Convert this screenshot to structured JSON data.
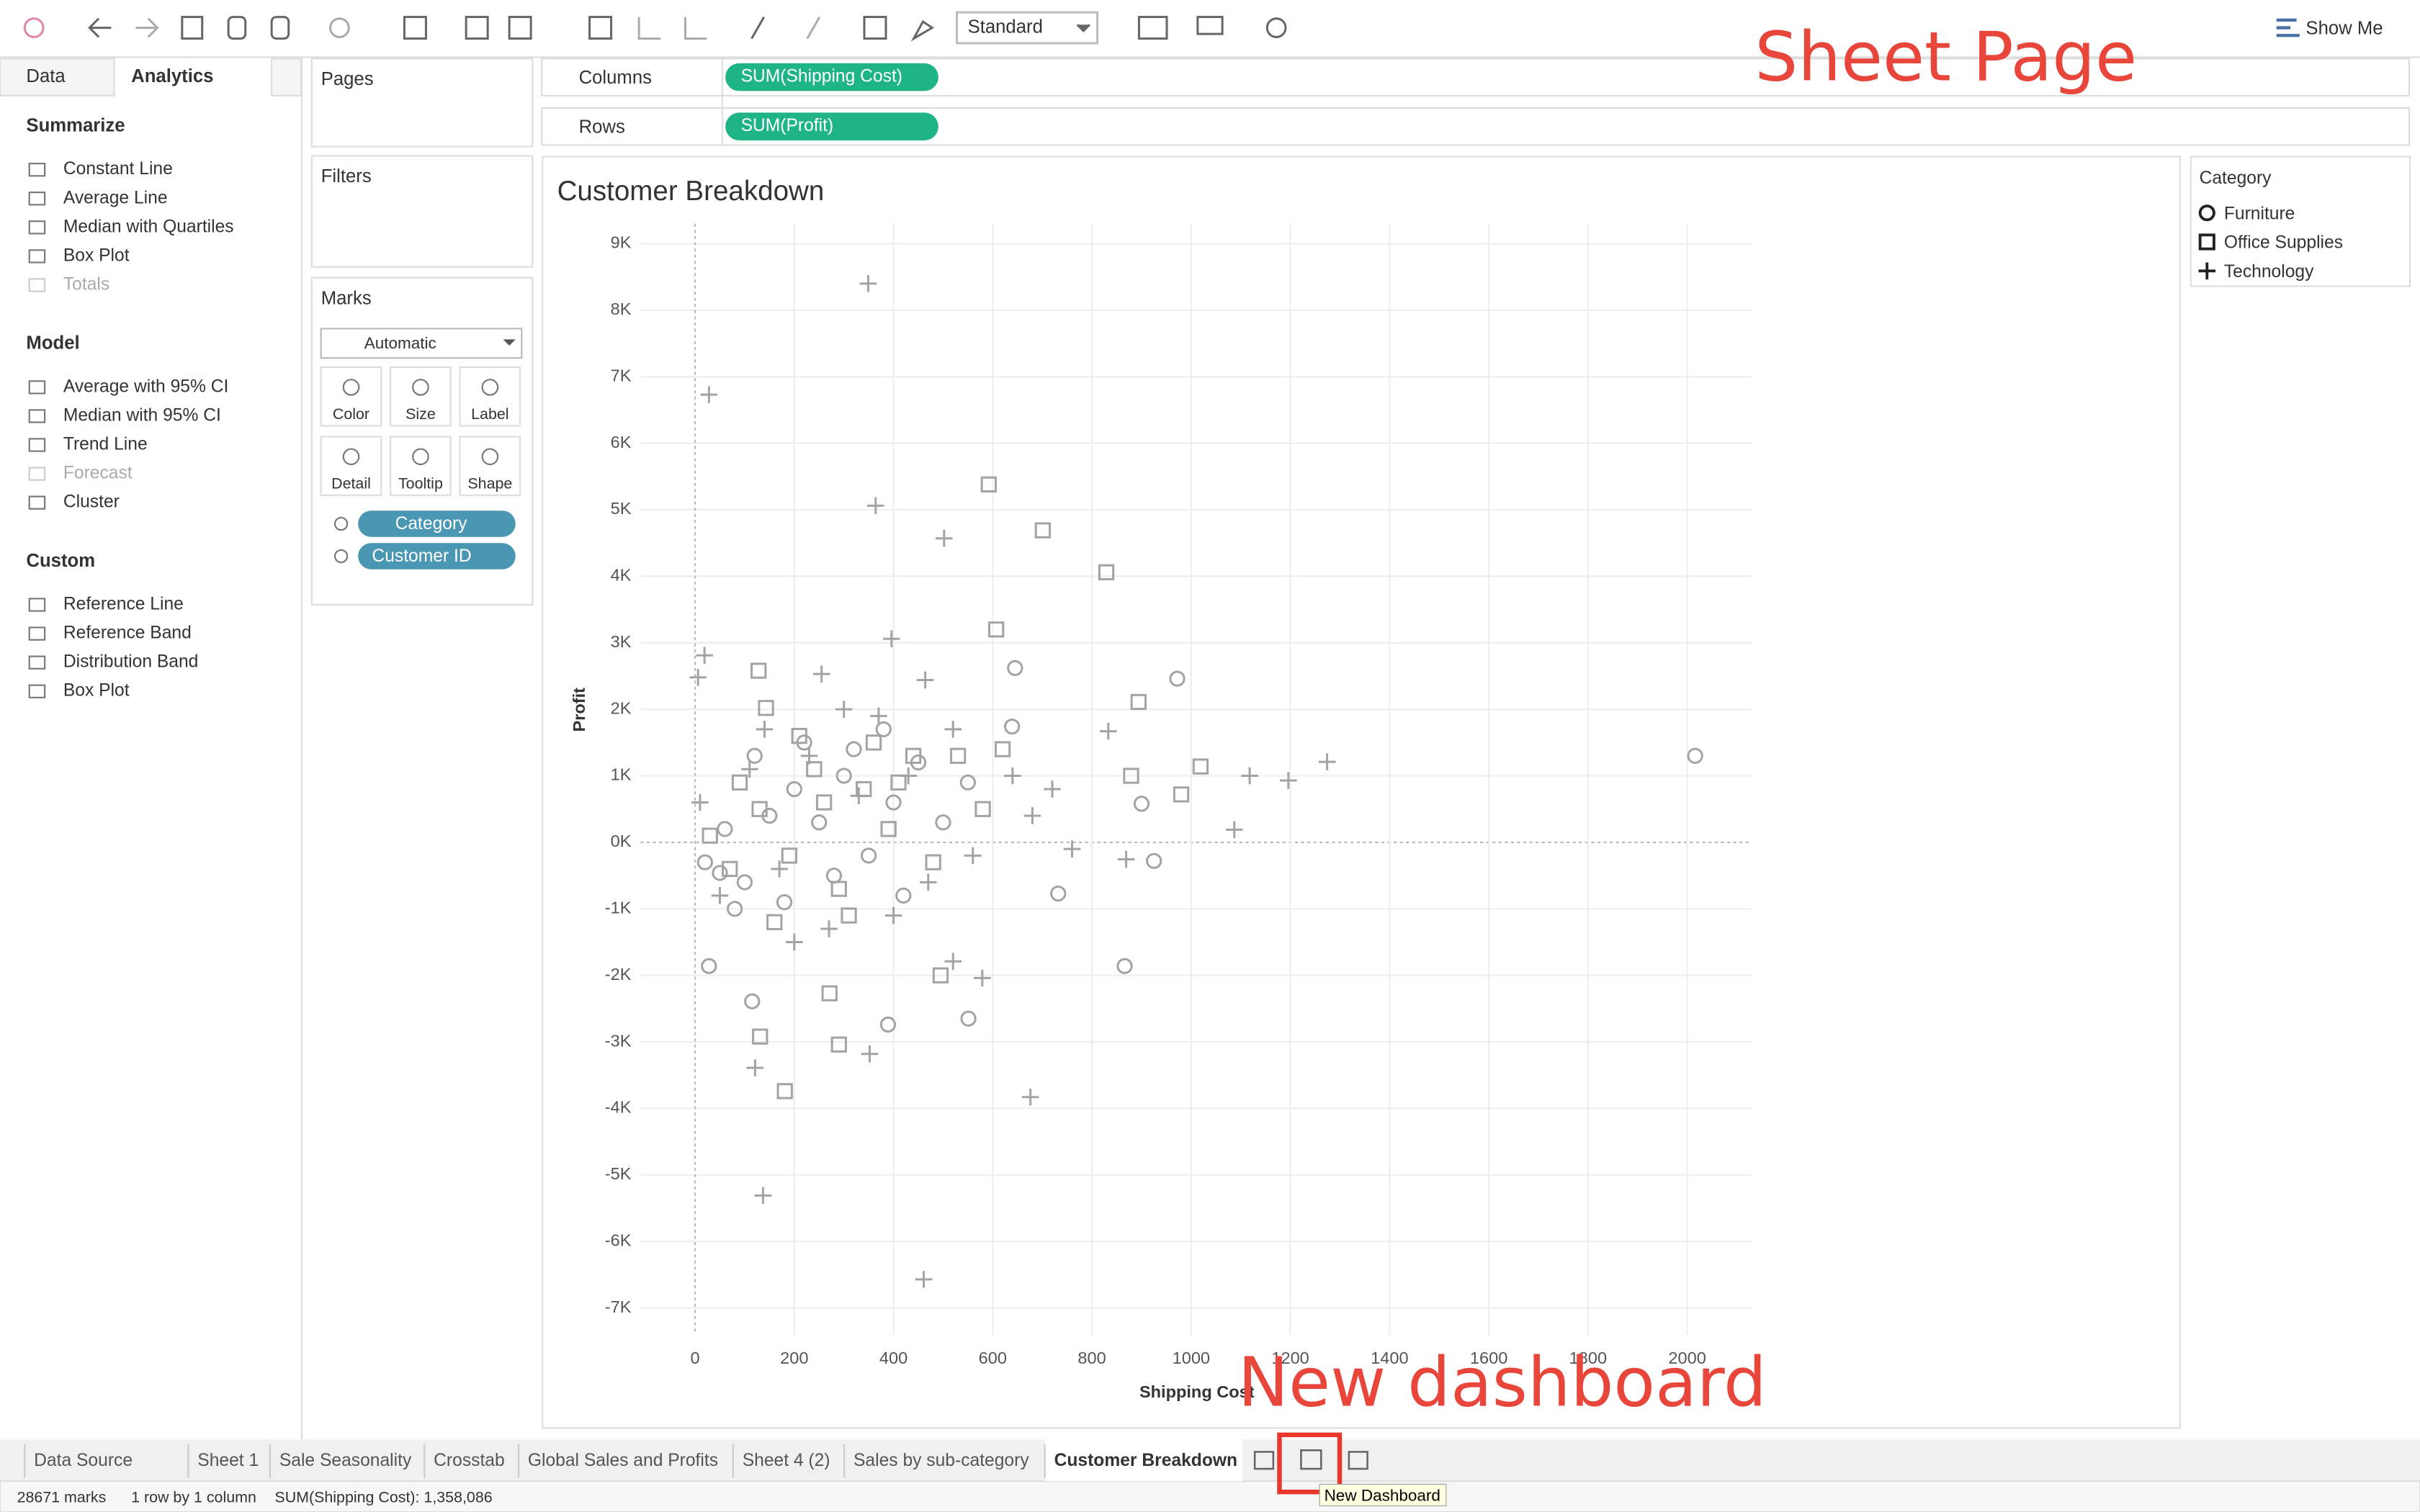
{
  "toolbar": {
    "fit": "Standard",
    "show_me": "Show Me"
  },
  "side_tabs": [
    "Data",
    "Analytics"
  ],
  "analytics": [
    {
      "heading": "Summarize",
      "items": [
        "Constant Line",
        "Average Line",
        "Median with Quartiles",
        "Box Plot",
        "Totals"
      ]
    },
    {
      "heading": "Model",
      "items": [
        "Average with 95% CI",
        "Median with 95% CI",
        "Trend Line",
        "Forecast",
        "Cluster"
      ]
    },
    {
      "heading": "Custom",
      "items": [
        "Reference Line",
        "Reference Band",
        "Distribution Band",
        "Box Plot"
      ]
    }
  ],
  "cards": {
    "pages": "Pages",
    "filters": "Filters",
    "marks": "Marks",
    "mark_type": "Automatic",
    "mark_buttons": [
      "Color",
      "Size",
      "Label",
      "Detail",
      "Tooltip",
      "Shape"
    ],
    "mark_pills": [
      "Category",
      "Customer ID"
    ]
  },
  "shelves": {
    "columns": {
      "label": "Columns",
      "pill": "SUM(Shipping Cost)"
    },
    "rows": {
      "label": "Rows",
      "pill": "SUM(Profit)"
    }
  },
  "chart_data": {
    "type": "scatter",
    "title": "Customer Breakdown",
    "x_label": "Shipping Cost",
    "y_label": "Profit",
    "xlim": [
      -110,
      2130
    ],
    "ylim": [
      -7400,
      9300
    ],
    "xticks": [
      0,
      200,
      400,
      600,
      800,
      1000,
      1200,
      1400,
      1600,
      1800,
      2000
    ],
    "yticks": [
      {
        "value": 9000,
        "label": "9K"
      },
      {
        "value": 8000,
        "label": "8K"
      },
      {
        "value": 7000,
        "label": "7K"
      },
      {
        "value": 6000,
        "label": "6K"
      },
      {
        "value": 5000,
        "label": "5K"
      },
      {
        "value": 4000,
        "label": "4K"
      },
      {
        "value": 3000,
        "label": "3K"
      },
      {
        "value": 2000,
        "label": "2K"
      },
      {
        "value": 1000,
        "label": "1K"
      },
      {
        "value": 0,
        "label": "0K"
      },
      {
        "value": -1000,
        "label": "-1K"
      },
      {
        "value": -2000,
        "label": "-2K"
      },
      {
        "value": -3000,
        "label": "-3K"
      },
      {
        "value": -4000,
        "label": "-4K"
      },
      {
        "value": -5000,
        "label": "-5K"
      },
      {
        "value": -6000,
        "label": "-6K"
      },
      {
        "value": -7000,
        "label": "-7K"
      }
    ],
    "grid": true,
    "legend": {
      "title": "Category",
      "position": "right"
    },
    "series": [
      {
        "name": "Furniture",
        "marker": "circle",
        "color": "#a3a3a3",
        "x": [
          2016,
          972,
          866,
          551,
          389,
          925,
          732,
          50,
          28,
          115,
          639,
          900,
          645,
          20,
          60,
          100,
          150,
          200,
          250,
          300,
          350,
          400,
          450,
          80,
          180,
          280,
          500,
          550,
          120,
          220,
          320,
          420,
          380
        ],
        "values": [
          1300,
          2460,
          -1860,
          -2650,
          -2740,
          -280,
          -770,
          -460,
          -1860,
          -2390,
          1740,
          580,
          2620,
          -300,
          200,
          -600,
          400,
          800,
          300,
          1000,
          -200,
          600,
          1200,
          -1000,
          -900,
          -500,
          300,
          900,
          1300,
          1500,
          1400,
          -800,
          1700
        ]
      },
      {
        "name": "Office Supplies",
        "marker": "square",
        "color": "#a3a3a3",
        "x": [
          592,
          701,
          829,
          607,
          894,
          128,
          1019,
          980,
          181,
          290,
          131,
          271,
          495,
          143,
          879,
          30,
          70,
          130,
          190,
          240,
          290,
          340,
          390,
          440,
          480,
          90,
          160,
          210,
          260,
          310,
          360,
          410,
          530,
          580,
          620
        ],
        "values": [
          5380,
          4690,
          4060,
          3200,
          2110,
          2580,
          1140,
          720,
          -3740,
          -3040,
          -2920,
          -2270,
          -2000,
          2020,
          1000,
          100,
          -400,
          500,
          -200,
          1100,
          -700,
          800,
          200,
          1300,
          -300,
          900,
          -1200,
          1600,
          600,
          -1100,
          1500,
          900,
          1300,
          500,
          1400
        ]
      },
      {
        "name": "Technology",
        "marker": "plus",
        "color": "#a3a3a3",
        "x": [
          349,
          28,
          364,
          502,
          6,
          19,
          396,
          1118,
          1196,
          1274,
          1087,
          833,
          137,
          461,
          676,
          352,
          121,
          579,
          520,
          869,
          255,
          464,
          10,
          50,
          110,
          170,
          230,
          270,
          330,
          370,
          430,
          470,
          140,
          200,
          300,
          400,
          520,
          560,
          640,
          680,
          720,
          760
        ],
        "values": [
          8400,
          6730,
          5060,
          4570,
          2480,
          2810,
          3060,
          1000,
          930,
          1210,
          190,
          1670,
          -5310,
          -6570,
          -3830,
          -3180,
          -3390,
          -2040,
          -1790,
          -255,
          2530,
          2440,
          600,
          -800,
          1100,
          -400,
          1300,
          -1300,
          700,
          1900,
          1000,
          -600,
          1700,
          -1500,
          2000,
          -1100,
          1700,
          -200,
          1000,
          400,
          800,
          -100
        ]
      }
    ]
  },
  "tabs": [
    "Data Source",
    "Sheet 1",
    "Sale Seasonality",
    "Crosstab",
    "Global Sales and Profits",
    "Sheet 4 (2)",
    "Sales by sub-category",
    "Customer Breakdown"
  ],
  "status": [
    "28671 marks",
    "1 row by 1 column",
    "SUM(Shipping Cost): 1,358,086"
  ],
  "annotations": {
    "sheet_page": "Sheet Page",
    "new_dashboard": "New dashboard",
    "tooltip": "New Dashboard"
  }
}
